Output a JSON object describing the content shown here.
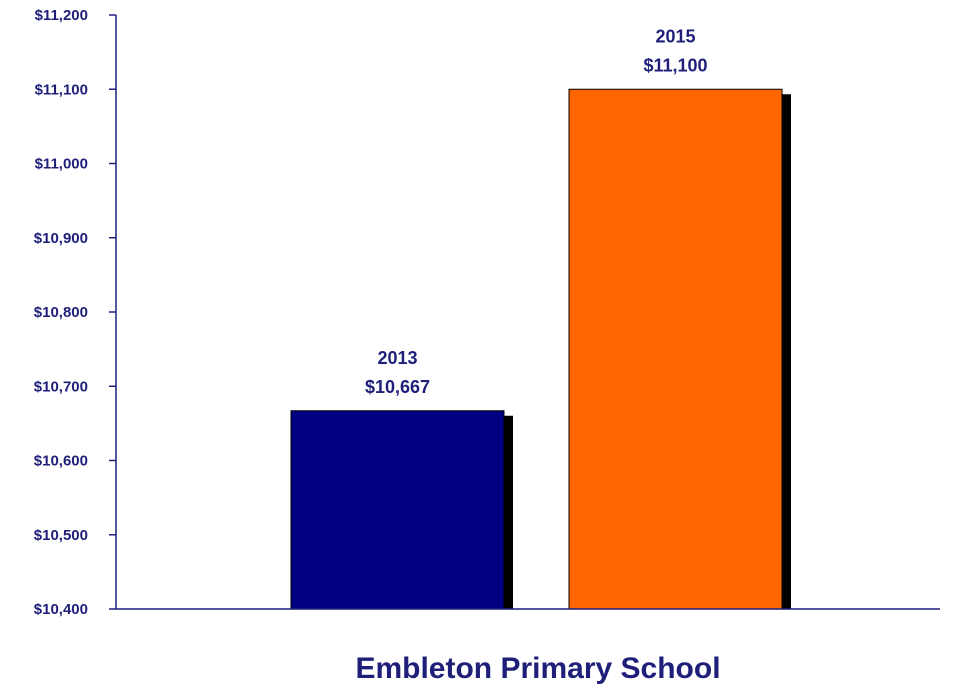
{
  "chart_data": {
    "type": "bar",
    "categories": [
      "Embleton Primary School"
    ],
    "series": [
      {
        "year_label": "2013",
        "value": 10667,
        "value_label": "$10,667",
        "color": "#000080"
      },
      {
        "year_label": "2015",
        "value": 11100,
        "value_label": "$11,100",
        "color": "#ff6600"
      }
    ],
    "ylim": [
      10400,
      11200
    ],
    "yticks": [
      10400,
      10500,
      10600,
      10700,
      10800,
      10900,
      11000,
      11100,
      11200
    ],
    "ytick_labels": [
      "$10,400",
      "$10,500",
      "$10,600",
      "$10,700",
      "$10,800",
      "$10,900",
      "$11,000",
      "$11,100",
      "$11,200"
    ],
    "axis_color": "#1f1f7a",
    "grid": false,
    "legend": "none"
  }
}
